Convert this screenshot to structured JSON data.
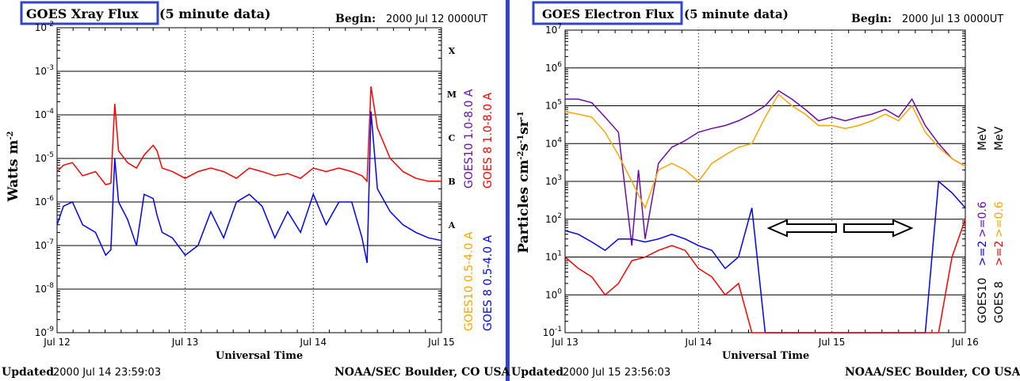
{
  "left_panel": {
    "title_box": "GOES Xray Flux",
    "title_rest": "(5 minute data)",
    "begin_label": "Begin:",
    "begin_value": "2000 Jul 12 0000UT",
    "footer_left_label": "Updated",
    "footer_left_value": "2000 Jul 14 23:59:03",
    "footer_right": "NOAA/SEC Boulder, CO USA"
  },
  "right_panel": {
    "title_box": "GOES Electron Flux",
    "title_rest": "(5 minute data)",
    "begin_label": "Begin:",
    "begin_value": "2000 Jul 13 0000UT",
    "footer_left_label": "Updated",
    "footer_left_value": "2000 Jul 15 23:56:03",
    "footer_right": "NOAA/SEC Boulder, CO USA",
    "legend_sat_labels": [
      {
        "text": "GOES10",
        "color": "#000000"
      },
      {
        "text": "GOES 8",
        "color": "#000000"
      }
    ],
    "legend_energy_labels": [
      {
        "text": ">=2",
        "color": "#0000ff"
      },
      {
        "text": ">=0.6",
        "color": "#6a0dad"
      },
      {
        "text": ">=2",
        "color": "#ff0000"
      },
      {
        "text": ">=0.6",
        "color": "#ffa500"
      }
    ],
    "legend_unit": "MeV"
  },
  "chart_data": [
    {
      "type": "line",
      "title": "GOES Xray Flux",
      "xlabel": "Universal Time",
      "ylabel": "Watts m-2",
      "yscale": "log",
      "ylim": [
        1e-09,
        0.01
      ],
      "y_tick_labels": [
        "10-9",
        "10-8",
        "10-7",
        "10-6",
        "10-5",
        "10-4",
        "10-3",
        "10-2"
      ],
      "x_tick_labels": [
        "Jul 12",
        "Jul 13",
        "Jul 14",
        "Jul 15"
      ],
      "class_labels": [
        "A",
        "B",
        "C",
        "M",
        "X"
      ],
      "grid": true,
      "legend_position": "right",
      "series": [
        {
          "name": "GOES10 1.0-8.0 A",
          "color": "#6a0dad"
        },
        {
          "name": "GOES 8 1.0-8.0 A",
          "color": "#ff0000",
          "x": [
            0,
            0.05,
            0.12,
            0.2,
            0.3,
            0.38,
            0.42,
            0.45,
            0.48,
            0.55,
            0.62,
            0.68,
            0.75,
            0.78,
            0.82,
            0.9,
            1.0,
            1.1,
            1.2,
            1.3,
            1.4,
            1.5,
            1.6,
            1.7,
            1.8,
            1.9,
            2.0,
            2.1,
            2.2,
            2.3,
            2.38,
            2.42,
            2.45,
            2.5,
            2.6,
            2.7,
            2.8,
            2.9,
            3.0
          ],
          "values": [
            5e-06,
            7e-06,
            8e-06,
            4e-06,
            5e-06,
            2.5e-06,
            2.7e-06,
            0.00018,
            1.5e-05,
            8e-06,
            6e-06,
            1.2e-05,
            2e-05,
            1.5e-05,
            6e-06,
            5e-06,
            3.5e-06,
            5e-06,
            6e-06,
            5e-06,
            3.5e-06,
            6e-06,
            5e-06,
            4e-06,
            4.5e-06,
            3.5e-06,
            6e-06,
            5e-06,
            6e-06,
            5e-06,
            4e-06,
            3e-06,
            0.00045,
            5e-05,
            1e-05,
            5e-06,
            3.5e-06,
            3e-06,
            3e-06
          ]
        },
        {
          "name": "GOES10 0.5-4.0 A",
          "color": "#ffa500"
        },
        {
          "name": "GOES 8 0.5-4.0 A",
          "color": "#0000ff",
          "x": [
            0,
            0.05,
            0.12,
            0.2,
            0.3,
            0.38,
            0.42,
            0.45,
            0.48,
            0.55,
            0.62,
            0.68,
            0.75,
            0.78,
            0.82,
            0.9,
            1.0,
            1.1,
            1.2,
            1.3,
            1.4,
            1.5,
            1.6,
            1.7,
            1.8,
            1.9,
            2.0,
            2.1,
            2.2,
            2.3,
            2.38,
            2.42,
            2.45,
            2.5,
            2.6,
            2.7,
            2.8,
            2.9,
            3.0
          ],
          "values": [
            3e-07,
            8e-07,
            1e-06,
            3e-07,
            2e-07,
            6e-08,
            8e-08,
            1e-05,
            1e-06,
            4e-07,
            1e-07,
            1.5e-06,
            1.2e-06,
            5e-07,
            2e-07,
            1.5e-07,
            6e-08,
            1e-07,
            6e-07,
            1.5e-07,
            1e-06,
            1.5e-06,
            8e-07,
            1.5e-07,
            6e-07,
            2e-07,
            1.5e-06,
            3e-07,
            1e-06,
            1e-06,
            1.5e-07,
            4e-08,
            0.00012,
            2e-06,
            6e-07,
            3e-07,
            2e-07,
            1.5e-07,
            1.3e-07
          ]
        }
      ]
    },
    {
      "type": "line",
      "title": "GOES Electron Flux",
      "xlabel": "Universal Time",
      "ylabel": "Particles cm-2s-1sr-1",
      "yscale": "log",
      "ylim": [
        0.1,
        10000000.0
      ],
      "y_tick_labels": [
        "10-1",
        "100",
        "101",
        "102",
        "103",
        "104",
        "105",
        "106",
        "107"
      ],
      "x_tick_labels": [
        "Jul 13",
        "Jul 14",
        "Jul 15",
        "Jul 16"
      ],
      "grid": true,
      "legend_position": "right",
      "series": [
        {
          "name": "GOES10 >=0.6",
          "color": "#6a0dad",
          "x": [
            0,
            0.1,
            0.2,
            0.3,
            0.4,
            0.5,
            0.55,
            0.6,
            0.7,
            0.8,
            0.9,
            1.0,
            1.1,
            1.2,
            1.3,
            1.4,
            1.5,
            1.6,
            1.7,
            1.8,
            1.9,
            2.0,
            2.1,
            2.2,
            2.3,
            2.4,
            2.5,
            2.6,
            2.7,
            2.8,
            2.9,
            3.0
          ],
          "values": [
            150000.0,
            150000.0,
            120000.0,
            50000.0,
            20000.0,
            20,
            2000.0,
            30,
            3000.0,
            8000.0,
            12000.0,
            20000.0,
            25000.0,
            30000.0,
            40000.0,
            60000.0,
            100000.0,
            250000.0,
            150000.0,
            80000.0,
            40000.0,
            50000.0,
            40000.0,
            50000.0,
            60000.0,
            80000.0,
            50000.0,
            150000.0,
            30000.0,
            10000.0,
            4000.0,
            2500.0
          ]
        },
        {
          "name": "GOES10 >=2",
          "color": "#0000ff",
          "x": [
            0,
            0.1,
            0.2,
            0.3,
            0.4,
            0.5,
            0.6,
            0.7,
            0.8,
            0.9,
            1.0,
            1.1,
            1.2,
            1.3,
            1.4,
            1.5,
            1.6,
            1.7,
            2.7,
            2.8,
            2.9,
            3.0
          ],
          "values": [
            50,
            40,
            25,
            15,
            30,
            30,
            25,
            30,
            40,
            30,
            20,
            15,
            5,
            10,
            200,
            0.1,
            0.1,
            0.1,
            0.1,
            1000,
            500,
            200
          ]
        },
        {
          "name": "GOES 8 >=2",
          "color": "#ff0000",
          "x": [
            0,
            0.1,
            0.2,
            0.3,
            0.4,
            0.5,
            0.6,
            0.7,
            0.8,
            0.9,
            1.0,
            1.1,
            1.2,
            1.3,
            1.4,
            1.5,
            1.6,
            2.0,
            2.5,
            2.8,
            2.9,
            3.0
          ],
          "values": [
            10,
            5,
            3,
            1,
            2,
            8,
            10,
            15,
            20,
            15,
            5,
            3,
            1,
            2,
            0.1,
            0.1,
            0.1,
            0.1,
            0.1,
            0.1,
            10,
            100
          ]
        },
        {
          "name": "GOES 8 >=0.6",
          "color": "#ffa500",
          "x": [
            0,
            0.1,
            0.2,
            0.3,
            0.4,
            0.5,
            0.6,
            0.7,
            0.8,
            0.9,
            1.0,
            1.1,
            1.2,
            1.3,
            1.4,
            1.5,
            1.6,
            1.7,
            1.8,
            1.9,
            2.0,
            2.1,
            2.2,
            2.3,
            2.4,
            2.5,
            2.6,
            2.7,
            2.8,
            2.9,
            3.0
          ],
          "values": [
            70000.0,
            60000.0,
            50000.0,
            20000.0,
            5000.0,
            1000.0,
            200,
            2000.0,
            3000.0,
            2000.0,
            1000.0,
            3000.0,
            5000.0,
            8000.0,
            10000.0,
            50000.0,
            200000.0,
            100000.0,
            60000.0,
            30000.0,
            30000.0,
            25000.0,
            30000.0,
            40000.0,
            60000.0,
            40000.0,
            100000.0,
            20000.0,
            8000.0,
            4000.0,
            2500.0
          ]
        }
      ]
    }
  ]
}
